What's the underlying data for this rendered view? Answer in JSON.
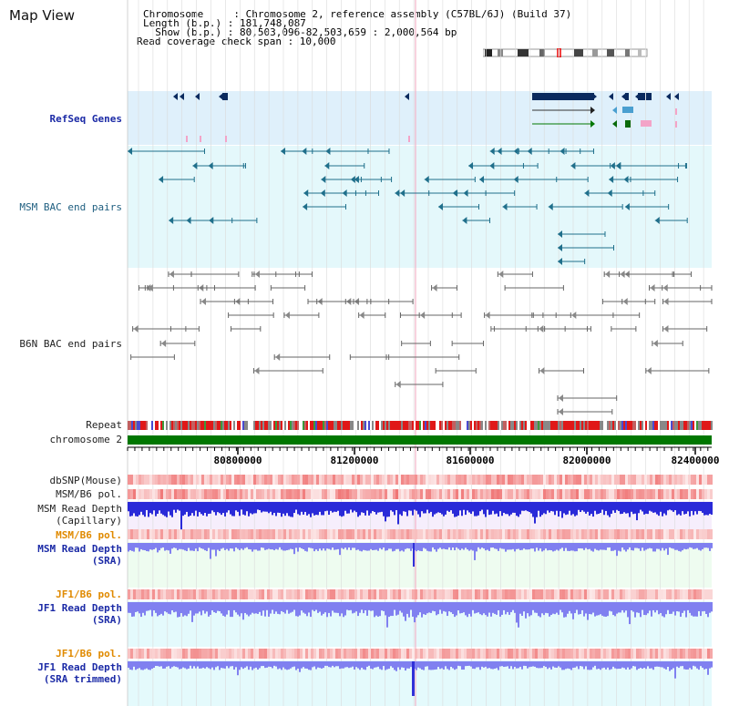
{
  "view": {
    "title": "Map View"
  },
  "header": {
    "line1": "Chromosome     : Chromosome 2, reference assembly (C57BL/6J) (Build 37)",
    "line2": "Length (b.p.) : 181,748,087",
    "line3": "  Show (b.p.) : 80,503,096-82,503,659 : 2,000,564 bp",
    "line4": "Read coverage check span : 10,000"
  },
  "tracks": {
    "refseq": "RefSeq Genes",
    "msm_bac": "MSM BAC end pairs",
    "b6n_bac": "B6N BAC end pairs",
    "repeat": "Repeat",
    "chromosome": "chromosome 2",
    "dbsnp": "dbSNP(Mouse)",
    "msm_b6_pol_1": "MSM/B6 pol.",
    "msm_read_depth_cap_1": "MSM Read Depth",
    "msm_read_depth_cap_2": "(Capillary)",
    "msm_b6_pol_2": "MSM/B6 pol.",
    "msm_read_depth_sra_1": "MSM Read Depth",
    "msm_read_depth_sra_2": "(SRA)",
    "jf1_b6_pol_1": "JF1/B6 pol.",
    "jf1_read_depth_1": "JF1 Read Depth",
    "jf1_read_depth_2": "(SRA)",
    "jf1_b6_pol_2": "JF1/B6 pol.",
    "jf1_read_depth_trim_1": "JF1 Read Depth",
    "jf1_read_depth_trim_2": "(SRA trimmed)"
  },
  "axis": {
    "ticks": [
      "80800000",
      "81200000",
      "81600000",
      "82000000",
      "82400000"
    ]
  },
  "colors": {
    "refseq_bg": "#dff0fb",
    "bac_bg": "#e4f8fb",
    "gene_dark": "#0a2a5e",
    "teal": "#1f6f8b",
    "gray": "#666666",
    "chromosome": "#007700",
    "depth_blue": "#2a2ad8",
    "depth_periwinkle": "#8080f0",
    "pol_red": "#e83030"
  }
}
